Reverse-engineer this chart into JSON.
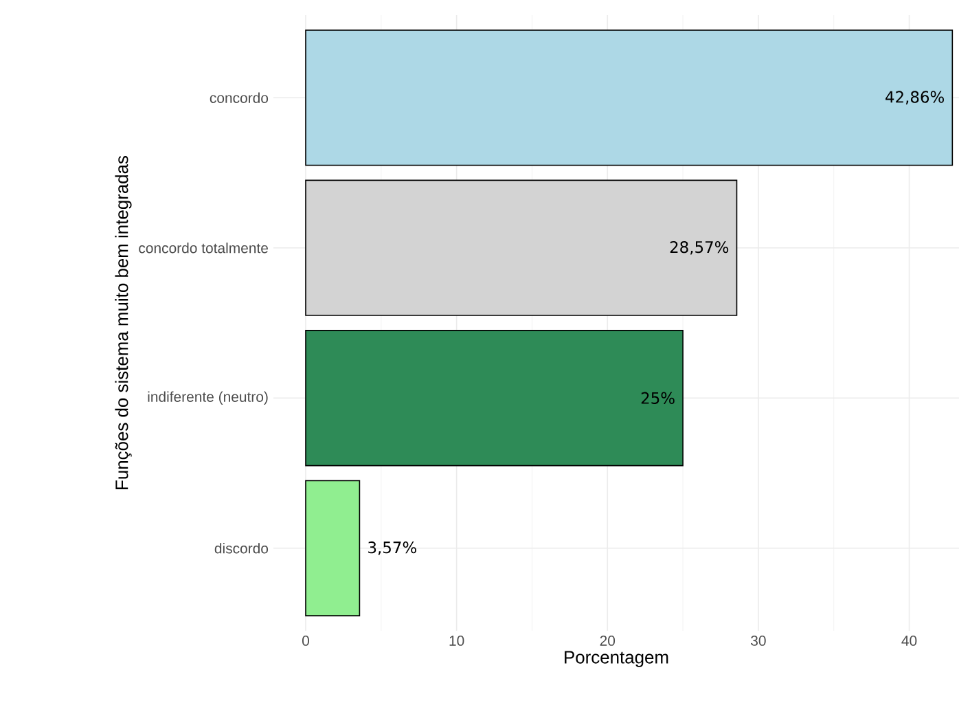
{
  "chart_data": {
    "type": "bar",
    "orientation": "horizontal",
    "xlabel": "Porcentagem",
    "ylabel": "Funções do sistema muito bem integradas",
    "categories": [
      "concordo",
      "concordo totalmente",
      "indiferente (neutro)",
      "discordo"
    ],
    "values": [
      42.86,
      28.57,
      25,
      3.57
    ],
    "colors": [
      "#add8e6",
      "#d3d3d3",
      "#2e8b57",
      "#90ee90"
    ],
    "value_labels": [
      "42,86%",
      "28,57%",
      "25%",
      "3,57%"
    ],
    "xlim": [
      -2.14,
      43.3
    ],
    "xticks": [
      0,
      10,
      20,
      30,
      40
    ],
    "grid": true
  }
}
